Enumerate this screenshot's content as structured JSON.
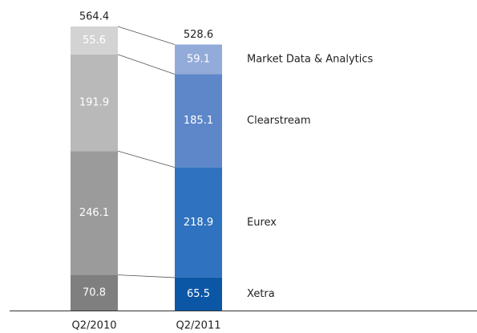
{
  "chart_data": {
    "type": "stacked-bar",
    "categories": [
      "Q2/2010",
      "Q2/2011"
    ],
    "series": [
      {
        "name": "Xetra",
        "colors": [
          "#7f7f80",
          "#0b57a6"
        ],
        "values": [
          70.8,
          65.5
        ]
      },
      {
        "name": "Eurex",
        "colors": [
          "#9b9b9c",
          "#2f72bf"
        ],
        "values": [
          246.1,
          218.9
        ]
      },
      {
        "name": "Clearstream",
        "colors": [
          "#b9b9ba",
          "#5e87c9"
        ],
        "values": [
          191.9,
          185.1
        ]
      },
      {
        "name": "Market Data & Analytics",
        "colors": [
          "#d3d3d4",
          "#93abd9"
        ],
        "values": [
          55.6,
          59.1
        ]
      }
    ],
    "totals": [
      564.4,
      528.6
    ]
  }
}
